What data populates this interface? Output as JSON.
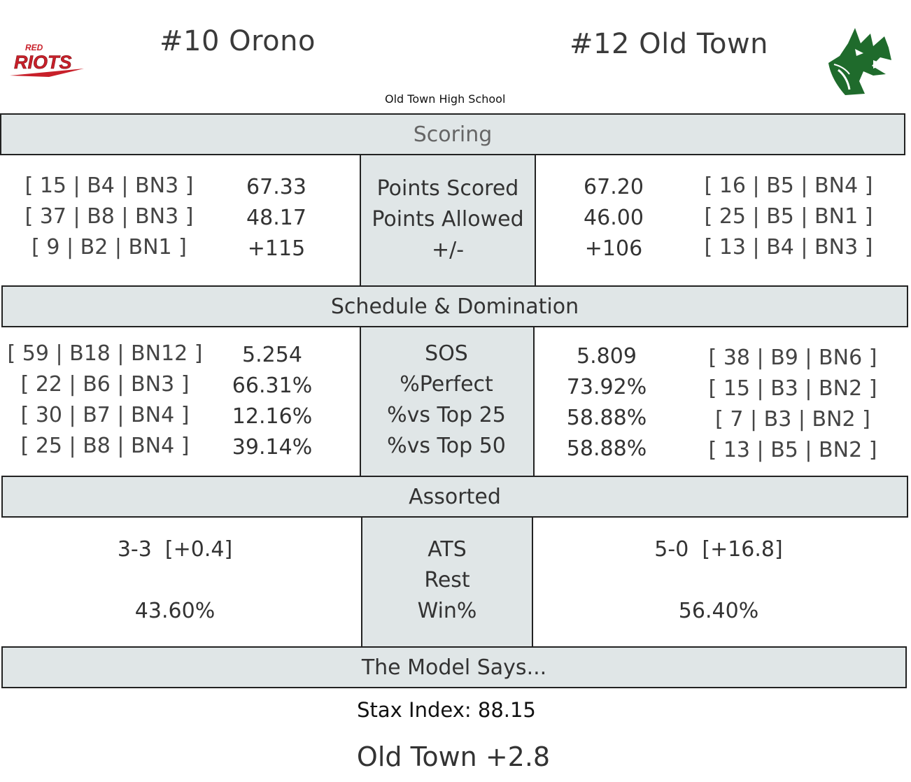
{
  "header": {
    "home_team": "#10 Orono",
    "away_team": "#12 Old Town",
    "venue": "Old Town High School",
    "home_logo_text": [
      "RED",
      "RIOTS"
    ],
    "home_logo_color": "#c8202a",
    "away_logo_color": "#1f6b2c"
  },
  "sections": {
    "scoring": "Scoring",
    "schedule": "Schedule & Domination",
    "assorted": "Assorted",
    "model": "The Model Says..."
  },
  "scoring": {
    "labels": [
      "Points Scored",
      "Points Allowed",
      "+/-"
    ],
    "left_ranks": [
      "[ 15 | B4 | BN3 ]",
      "[ 37 | B8 | BN3 ]",
      "[ 9 | B2 | BN1 ]"
    ],
    "left_values": [
      "67.33",
      "48.17",
      "+115"
    ],
    "right_values": [
      "67.20",
      "46.00",
      "+106"
    ],
    "right_ranks": [
      "[ 16 | B5 | BN4 ]",
      "[ 25 | B5 | BN1 ]",
      "[ 13 | B4 | BN3 ]"
    ]
  },
  "schedule": {
    "labels": [
      "SOS",
      "%Perfect",
      "%vs Top 25",
      "%vs Top 50"
    ],
    "left_ranks": [
      "[ 59 | B18 | BN12 ]",
      "[ 22 | B6 | BN3 ]",
      "[ 30 | B7 | BN4 ]",
      "[ 25 | B8 | BN4 ]"
    ],
    "left_values": [
      "5.254",
      "66.31%",
      "12.16%",
      "39.14%"
    ],
    "right_values": [
      "5.809",
      "73.92%",
      "58.88%",
      "58.88%"
    ],
    "right_ranks": [
      "[ 38 | B9 | BN6 ]",
      "[ 15 | B3 | BN2 ]",
      "[ 7 | B3 | BN2 ]",
      "[ 13 | B5 | BN2 ]"
    ]
  },
  "assorted": {
    "labels": [
      "ATS",
      "Rest",
      "Win%"
    ],
    "left": {
      "ats": "3-3  [+0.4]",
      "win": "43.60%"
    },
    "right": {
      "ats": "5-0  [+16.8]",
      "win": "56.40%"
    }
  },
  "model": {
    "stax": "Stax Index: 88.15",
    "pick": "Old Town +2.8"
  }
}
